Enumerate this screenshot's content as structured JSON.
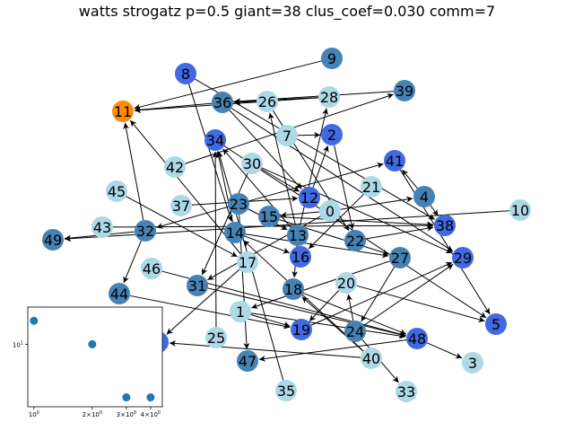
{
  "title": "watts strogatz p=0.5 giant=38 clus_coef=0.030 comm=7",
  "colors": {
    "orange": "#ff8c00",
    "royal": "#4169e1",
    "steel": "#4682b4",
    "light": "#add8e6",
    "edge": "#000000"
  },
  "nodes": [
    {
      "id": "0",
      "color": "light"
    },
    {
      "id": "1",
      "color": "light"
    },
    {
      "id": "2",
      "color": "royal"
    },
    {
      "id": "3",
      "color": "light"
    },
    {
      "id": "4",
      "color": "steel"
    },
    {
      "id": "5",
      "color": "royal"
    },
    {
      "id": "7",
      "color": "light"
    },
    {
      "id": "8",
      "color": "royal"
    },
    {
      "id": "9",
      "color": "steel"
    },
    {
      "id": "10",
      "color": "light"
    },
    {
      "id": "11",
      "color": "orange"
    },
    {
      "id": "12",
      "color": "royal"
    },
    {
      "id": "13",
      "color": "steel"
    },
    {
      "id": "14",
      "color": "steel"
    },
    {
      "id": "15",
      "color": "steel"
    },
    {
      "id": "16",
      "color": "royal"
    },
    {
      "id": "17",
      "color": "light"
    },
    {
      "id": "18",
      "color": "steel"
    },
    {
      "id": "19",
      "color": "royal"
    },
    {
      "id": "20",
      "color": "light"
    },
    {
      "id": "21",
      "color": "light"
    },
    {
      "id": "22",
      "color": "steel"
    },
    {
      "id": "23",
      "color": "steel"
    },
    {
      "id": "24",
      "color": "steel"
    },
    {
      "id": "25",
      "color": "light"
    },
    {
      "id": "26",
      "color": "light"
    },
    {
      "id": "27",
      "color": "steel"
    },
    {
      "id": "28",
      "color": "light"
    },
    {
      "id": "29",
      "color": "royal"
    },
    {
      "id": "30",
      "color": "light"
    },
    {
      "id": "31",
      "color": "steel"
    },
    {
      "id": "32",
      "color": "steel"
    },
    {
      "id": "33",
      "color": "light"
    },
    {
      "id": "34",
      "color": "royal"
    },
    {
      "id": "35",
      "color": "light"
    },
    {
      "id": "36",
      "color": "steel"
    },
    {
      "id": "37",
      "color": "light"
    },
    {
      "id": "38",
      "color": "royal"
    },
    {
      "id": "39",
      "color": "steel"
    },
    {
      "id": "40",
      "color": "light"
    },
    {
      "id": "41",
      "color": "royal"
    },
    {
      "id": "42",
      "color": "light"
    },
    {
      "id": "43",
      "color": "light"
    },
    {
      "id": "44",
      "color": "steel"
    },
    {
      "id": "45",
      "color": "light"
    },
    {
      "id": "46",
      "color": "light"
    },
    {
      "id": "47",
      "color": "steel"
    },
    {
      "id": "48",
      "color": "royal"
    },
    {
      "id": "49",
      "color": "steel"
    },
    {
      "id": "hidden",
      "color": "royal"
    }
  ],
  "edges": [
    [
      "9",
      "11"
    ],
    [
      "28",
      "11"
    ],
    [
      "36",
      "11"
    ],
    [
      "26",
      "36"
    ],
    [
      "39",
      "36"
    ],
    [
      "28",
      "36"
    ],
    [
      "36",
      "12"
    ],
    [
      "36",
      "29"
    ],
    [
      "8",
      "38"
    ],
    [
      "8",
      "14"
    ],
    [
      "7",
      "2"
    ],
    [
      "42",
      "39"
    ],
    [
      "12",
      "2"
    ],
    [
      "13",
      "26"
    ],
    [
      "13",
      "28"
    ],
    [
      "13",
      "34"
    ],
    [
      "30",
      "31"
    ],
    [
      "30",
      "12"
    ],
    [
      "34",
      "5"
    ],
    [
      "23",
      "41"
    ],
    [
      "37",
      "12"
    ],
    [
      "0",
      "4"
    ],
    [
      "0",
      "15"
    ],
    [
      "0",
      "31"
    ],
    [
      "4",
      "41"
    ],
    [
      "41",
      "5"
    ],
    [
      "4",
      "38"
    ],
    [
      "10",
      "49"
    ],
    [
      "15",
      "38"
    ],
    [
      "23",
      "13"
    ],
    [
      "23",
      "32"
    ],
    [
      "23",
      "47"
    ],
    [
      "32",
      "49"
    ],
    [
      "43",
      "38"
    ],
    [
      "32",
      "11"
    ],
    [
      "32",
      "44"
    ],
    [
      "17",
      "11"
    ],
    [
      "45",
      "17"
    ],
    [
      "14",
      "27"
    ],
    [
      "14",
      "16"
    ],
    [
      "14",
      "34"
    ],
    [
      "13",
      "18"
    ],
    [
      "35",
      "34"
    ],
    [
      "25",
      "34"
    ],
    [
      "21",
      "16"
    ],
    [
      "22",
      "38"
    ],
    [
      "27",
      "24"
    ],
    [
      "27",
      "1"
    ],
    [
      "24",
      "29"
    ],
    [
      "24",
      "33"
    ],
    [
      "19",
      "29"
    ],
    [
      "20",
      "19"
    ],
    [
      "20",
      "5"
    ],
    [
      "46",
      "48"
    ],
    [
      "31",
      "48"
    ],
    [
      "18",
      "48"
    ],
    [
      "1",
      "48"
    ],
    [
      "1",
      "19"
    ],
    [
      "40",
      "18"
    ],
    [
      "40",
      "14"
    ],
    [
      "40",
      "hidden"
    ],
    [
      "48",
      "47"
    ],
    [
      "48",
      "3"
    ],
    [
      "44",
      "19"
    ],
    [
      "17",
      "hidden"
    ],
    [
      "2",
      "22"
    ],
    [
      "26",
      "22"
    ],
    [
      "30",
      "29"
    ],
    [
      "15",
      "27"
    ],
    [
      "24",
      "20"
    ]
  ],
  "inset": {
    "x_ticks": [
      "10^0",
      "2×10^0",
      "3×10^0",
      "4×10^0"
    ],
    "y_ticks": [
      "10^1"
    ],
    "points": [
      [
        1,
        15
      ],
      [
        2,
        10
      ],
      [
        3,
        4
      ],
      [
        4,
        4
      ]
    ]
  }
}
